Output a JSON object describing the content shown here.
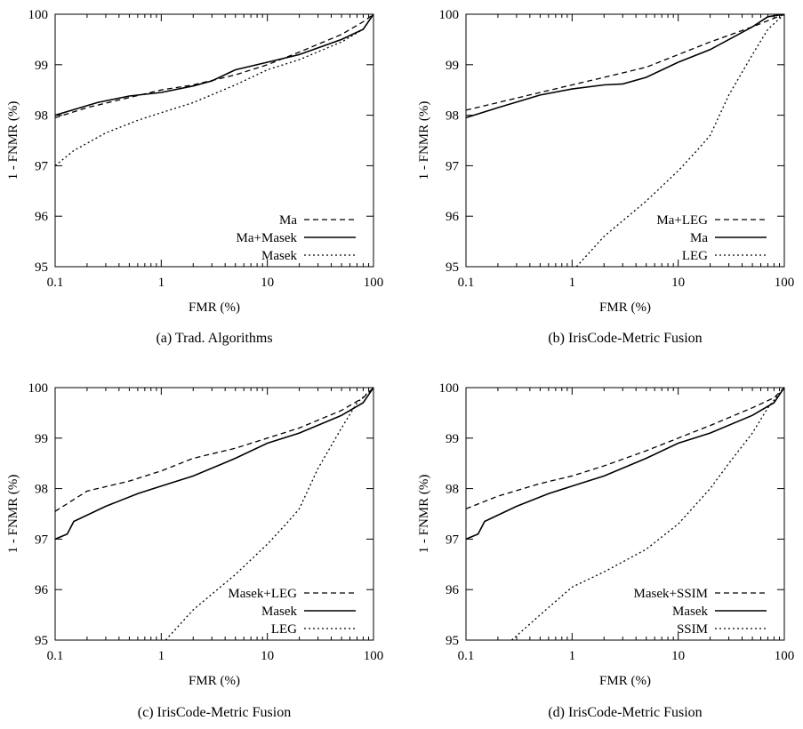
{
  "chart_data": [
    {
      "type": "line",
      "panel": "(a)",
      "caption": "(a)  Trad. Algorithms",
      "xlabel": "FMR (%)",
      "ylabel": "1 - FNMR (%)",
      "xscale": "log",
      "xlim": [
        0.1,
        100
      ],
      "ylim": [
        95,
        100
      ],
      "x_ticks": [
        0.1,
        1,
        10,
        100
      ],
      "x_tick_labels": [
        "0.1",
        "1",
        "10",
        "100"
      ],
      "y_ticks": [
        95,
        96,
        97,
        98,
        99,
        100
      ],
      "y_tick_labels": [
        "95",
        "96",
        "97",
        "98",
        "99",
        "100"
      ],
      "grid": false,
      "legend": "bottom-right",
      "series": [
        {
          "name": "Ma",
          "style": "dashed",
          "x": [
            0.1,
            0.2,
            0.5,
            1,
            2,
            5,
            10,
            20,
            50,
            80,
            100
          ],
          "y": [
            97.95,
            98.15,
            98.35,
            98.5,
            98.6,
            98.8,
            99.0,
            99.25,
            99.6,
            99.85,
            100
          ]
        },
        {
          "name": "Ma+Masek",
          "style": "solid",
          "x": [
            0.1,
            0.25,
            0.5,
            1,
            2,
            3,
            5,
            10,
            20,
            50,
            80,
            100
          ],
          "y": [
            98.0,
            98.25,
            98.38,
            98.45,
            98.58,
            98.68,
            98.9,
            99.05,
            99.2,
            99.5,
            99.7,
            100
          ]
        },
        {
          "name": "Masek",
          "style": "dotted",
          "x": [
            0.1,
            0.15,
            0.3,
            0.6,
            1,
            2,
            5,
            10,
            20,
            50,
            80,
            100
          ],
          "y": [
            97.0,
            97.3,
            97.65,
            97.9,
            98.05,
            98.25,
            98.6,
            98.9,
            99.1,
            99.45,
            99.7,
            100
          ]
        }
      ]
    },
    {
      "type": "line",
      "panel": "(b)",
      "caption": "(b)  IrisCode-Metric Fusion",
      "xlabel": "FMR (%)",
      "ylabel": "1 - FNMR (%)",
      "xscale": "log",
      "xlim": [
        0.1,
        100
      ],
      "ylim": [
        95,
        100
      ],
      "x_ticks": [
        0.1,
        1,
        10,
        100
      ],
      "x_tick_labels": [
        "0.1",
        "1",
        "10",
        "100"
      ],
      "y_ticks": [
        95,
        96,
        97,
        98,
        99,
        100
      ],
      "y_tick_labels": [
        "95",
        "96",
        "97",
        "98",
        "99",
        "100"
      ],
      "grid": false,
      "legend": "bottom-right",
      "series": [
        {
          "name": "Ma+LEG",
          "style": "dashed",
          "x": [
            0.1,
            0.2,
            0.5,
            1,
            2,
            5,
            10,
            20,
            50,
            80,
            100
          ],
          "y": [
            98.1,
            98.25,
            98.45,
            98.6,
            98.75,
            98.95,
            99.2,
            99.45,
            99.75,
            99.92,
            100
          ]
        },
        {
          "name": "Ma",
          "style": "solid",
          "x": [
            0.1,
            0.2,
            0.5,
            1,
            2,
            3,
            5,
            10,
            20,
            50,
            70,
            100
          ],
          "y": [
            97.95,
            98.15,
            98.4,
            98.52,
            98.6,
            98.62,
            98.75,
            99.05,
            99.3,
            99.75,
            99.95,
            100
          ]
        },
        {
          "name": "LEG",
          "style": "dotted",
          "x": [
            1.1,
            2,
            5,
            10,
            15,
            20,
            30,
            50,
            70,
            100
          ],
          "y": [
            95.0,
            95.6,
            96.3,
            96.9,
            97.3,
            97.6,
            98.4,
            99.2,
            99.7,
            100
          ]
        }
      ]
    },
    {
      "type": "line",
      "panel": "(c)",
      "caption": "(c)  IrisCode-Metric Fusion",
      "xlabel": "FMR (%)",
      "ylabel": "1 - FNMR (%)",
      "xscale": "log",
      "xlim": [
        0.1,
        100
      ],
      "ylim": [
        95,
        100
      ],
      "x_ticks": [
        0.1,
        1,
        10,
        100
      ],
      "x_tick_labels": [
        "0.1",
        "1",
        "10",
        "100"
      ],
      "y_ticks": [
        95,
        96,
        97,
        98,
        99,
        100
      ],
      "y_tick_labels": [
        "95",
        "96",
        "97",
        "98",
        "99",
        "100"
      ],
      "grid": false,
      "legend": "bottom-right",
      "series": [
        {
          "name": "Masek+LEG",
          "style": "dashed",
          "x": [
            0.1,
            0.2,
            0.5,
            1,
            2,
            5,
            10,
            20,
            50,
            80,
            100
          ],
          "y": [
            97.55,
            97.95,
            98.15,
            98.35,
            98.6,
            98.8,
            99.0,
            99.2,
            99.55,
            99.8,
            100
          ]
        },
        {
          "name": "Masek",
          "style": "solid",
          "x": [
            0.1,
            0.13,
            0.15,
            0.3,
            0.6,
            1,
            2,
            5,
            10,
            20,
            50,
            80,
            100
          ],
          "y": [
            97.0,
            97.1,
            97.35,
            97.65,
            97.9,
            98.05,
            98.25,
            98.6,
            98.9,
            99.1,
            99.45,
            99.7,
            100
          ]
        },
        {
          "name": "LEG",
          "style": "dotted",
          "x": [
            1.1,
            2,
            5,
            10,
            15,
            20,
            30,
            50,
            70,
            100
          ],
          "y": [
            95.0,
            95.6,
            96.3,
            96.9,
            97.3,
            97.6,
            98.4,
            99.2,
            99.7,
            100
          ]
        }
      ]
    },
    {
      "type": "line",
      "panel": "(d)",
      "caption": "(d)  IrisCode-Metric Fusion",
      "xlabel": "FMR (%)",
      "ylabel": "1 - FNMR (%)",
      "xscale": "log",
      "xlim": [
        0.1,
        100
      ],
      "ylim": [
        95,
        100
      ],
      "x_ticks": [
        0.1,
        1,
        10,
        100
      ],
      "x_tick_labels": [
        "0.1",
        "1",
        "10",
        "100"
      ],
      "y_ticks": [
        95,
        96,
        97,
        98,
        99,
        100
      ],
      "y_tick_labels": [
        "95",
        "96",
        "97",
        "98",
        "99",
        "100"
      ],
      "grid": false,
      "legend": "bottom-right",
      "series": [
        {
          "name": "Masek+SSIM",
          "style": "dashed",
          "x": [
            0.1,
            0.2,
            0.5,
            1,
            2,
            5,
            10,
            20,
            50,
            80,
            100
          ],
          "y": [
            97.6,
            97.85,
            98.1,
            98.25,
            98.45,
            98.75,
            99.0,
            99.25,
            99.6,
            99.8,
            100
          ]
        },
        {
          "name": "Masek",
          "style": "solid",
          "x": [
            0.1,
            0.13,
            0.15,
            0.3,
            0.6,
            1,
            2,
            5,
            10,
            20,
            50,
            80,
            100
          ],
          "y": [
            97.0,
            97.1,
            97.35,
            97.65,
            97.9,
            98.05,
            98.25,
            98.6,
            98.9,
            99.1,
            99.45,
            99.7,
            100
          ]
        },
        {
          "name": "SSIM",
          "style": "dotted",
          "x": [
            0.27,
            0.5,
            1,
            2,
            5,
            10,
            20,
            30,
            50,
            70,
            100
          ],
          "y": [
            95.0,
            95.5,
            96.05,
            96.35,
            96.8,
            97.3,
            98.0,
            98.5,
            99.1,
            99.6,
            100
          ]
        }
      ]
    }
  ]
}
